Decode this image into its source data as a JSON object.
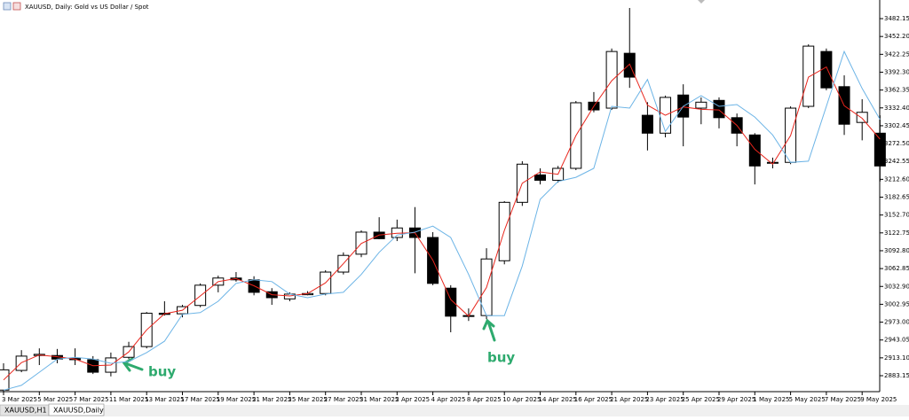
{
  "chart_data": {
    "type": "candlestick",
    "title": "XAUUSD, Daily:  Gold vs US Dollar / Spot",
    "categories": [
      "3 Mar 2025",
      null,
      "5 Mar 2025",
      null,
      "7 Mar 2025",
      null,
      "11 Mar 2025",
      null,
      "13 Mar 2025",
      null,
      "17 Mar 2025",
      null,
      "19 Mar 2025",
      null,
      "21 Mar 2025",
      null,
      "25 Mar 2025",
      null,
      "27 Mar 2025",
      null,
      "31 Mar 2025",
      null,
      "2 Apr 2025",
      null,
      "4 Apr 2025",
      null,
      "8 Apr 2025",
      null,
      "10 Apr 2025",
      null,
      "14 Apr 2025",
      null,
      "16 Apr 2025",
      null,
      "21 Apr 2025",
      null,
      "23 Apr 2025",
      null,
      "25 Apr 2025",
      null,
      "29 Apr 2025",
      null,
      "1 May 2025",
      null,
      "5 May 2025",
      null,
      "7 May 2025",
      null,
      "9 May 2025",
      null
    ],
    "open": [
      2859,
      2892,
      2917,
      2917,
      2912,
      2910,
      2889,
      2914,
      2932,
      2988,
      2987,
      3001,
      3035,
      3047,
      3044,
      3024,
      3012,
      3019,
      3021,
      3057,
      3087,
      3124,
      3115,
      3131,
      3115,
      3030,
      2984,
      2984,
      3076,
      3174,
      3220,
      3211,
      3231,
      3342,
      3332,
      3424,
      3320,
      3290,
      3354,
      3332,
      3345,
      3316,
      3287,
      3241,
      3241,
      3335,
      3427,
      3368,
      3308,
      3290
    ],
    "high": [
      2904,
      2926,
      2929,
      2928,
      2929,
      2916,
      2922,
      2940,
      2990,
      3008,
      3002,
      3038,
      3051,
      3057,
      3050,
      3030,
      3023,
      3025,
      3060,
      3090,
      3127,
      3149,
      3145,
      3166,
      3124,
      3035,
      2996,
      3097,
      3176,
      3243,
      3231,
      3235,
      3344,
      3359,
      3432,
      3500,
      3342,
      3353,
      3372,
      3350,
      3350,
      3323,
      3290,
      3249,
      3335,
      3439,
      3432,
      3387,
      3347,
      3320
    ],
    "low": [
      2852,
      2889,
      2901,
      2904,
      2901,
      2886,
      2882,
      2911,
      2929,
      2984,
      2981,
      2998,
      3023,
      3041,
      3018,
      3002,
      3008,
      3018,
      3018,
      3053,
      3082,
      3112,
      3109,
      3055,
      3035,
      2956,
      2975,
      2978,
      3070,
      3168,
      3204,
      3207,
      3228,
      3325,
      3329,
      3366,
      3261,
      3283,
      3268,
      3305,
      3298,
      3268,
      3204,
      3231,
      3238,
      3332,
      3362,
      3287,
      3278,
      3209
    ],
    "close": [
      2893,
      2916,
      2919,
      2911,
      2910,
      2889,
      2913,
      2932,
      2988,
      2986,
      2999,
      3035,
      3047,
      3044,
      3023,
      3014,
      3020,
      3021,
      3057,
      3085,
      3124,
      3113,
      3131,
      3115,
      3038,
      2983,
      2983,
      3079,
      3174,
      3238,
      3211,
      3231,
      3341,
      3329,
      3427,
      3384,
      3290,
      3350,
      3317,
      3342,
      3316,
      3290,
      3235,
      3240,
      3332,
      3436,
      3366,
      3305,
      3325,
      3235
    ],
    "overlays": [
      {
        "color": "#e8251c",
        "values": [
          2876,
          2905,
          2918,
          2915,
          2911,
          2900,
          2901,
          2923,
          2960,
          2987,
          2993,
          3017,
          3041,
          3046,
          3034,
          3019,
          3017,
          3021,
          3039,
          3071,
          3105,
          3119,
          3122,
          3123,
          3077,
          3011,
          2983,
          3031,
          3127,
          3206,
          3225,
          3221,
          3286,
          3335,
          3378,
          3406,
          3337,
          3320,
          3334,
          3330,
          3329,
          3303,
          3263,
          3238,
          3286,
          3384,
          3401,
          3336,
          3315,
          3280
        ]
      },
      {
        "color": "#6cb4e6",
        "values": [
          2859,
          2867,
          2889,
          2911,
          2914,
          2911,
          2904,
          2907,
          2922,
          2941,
          2986,
          2989,
          3008,
          3038,
          3044,
          3041,
          3020,
          3014,
          3020,
          3023,
          3053,
          3090,
          3119,
          3124,
          3134,
          3115,
          3053,
          2984,
          2984,
          3067,
          3179,
          3209,
          3216,
          3231,
          3335,
          3332,
          3380,
          3293,
          3335,
          3353,
          3335,
          3338,
          3317,
          3287,
          3241,
          3243,
          3335,
          3427,
          3365,
          3313
        ]
      }
    ],
    "bull_color": "#ffffff",
    "bear_color": "#000000",
    "ylim": [
      2856.4,
      3491.1
    ],
    "yticks": [
      3482.15,
      {
        "value": 3452.2,
        "label": "3452.20"
      },
      {
        "value": 3422.25,
        "label": "3422.25"
      },
      {
        "value": 3392.3,
        "label": "3392.30"
      },
      3362.35,
      {
        "value": 3332.4,
        "label": "3332.40"
      },
      3302.45,
      {
        "value": 3272.5,
        "label": "3272.50"
      },
      3242.55,
      {
        "value": 3212.6,
        "label": "3212.60"
      },
      3182.65,
      {
        "value": 3152.7,
        "label": "3152.70"
      },
      3122.75,
      {
        "value": 3092.8,
        "label": "3092.80"
      },
      3062.85,
      {
        "value": 3032.9,
        "label": "3032.90"
      },
      3002.95,
      {
        "value": 2973,
        "label": "2973.00"
      },
      2943.05,
      {
        "value": 2913.1,
        "label": "2913.10"
      },
      2883.15
    ],
    "annotations": [
      "buy",
      "buy"
    ],
    "tabs": [
      "XAUUSD,H1",
      "XAUUSD,Daily"
    ]
  }
}
